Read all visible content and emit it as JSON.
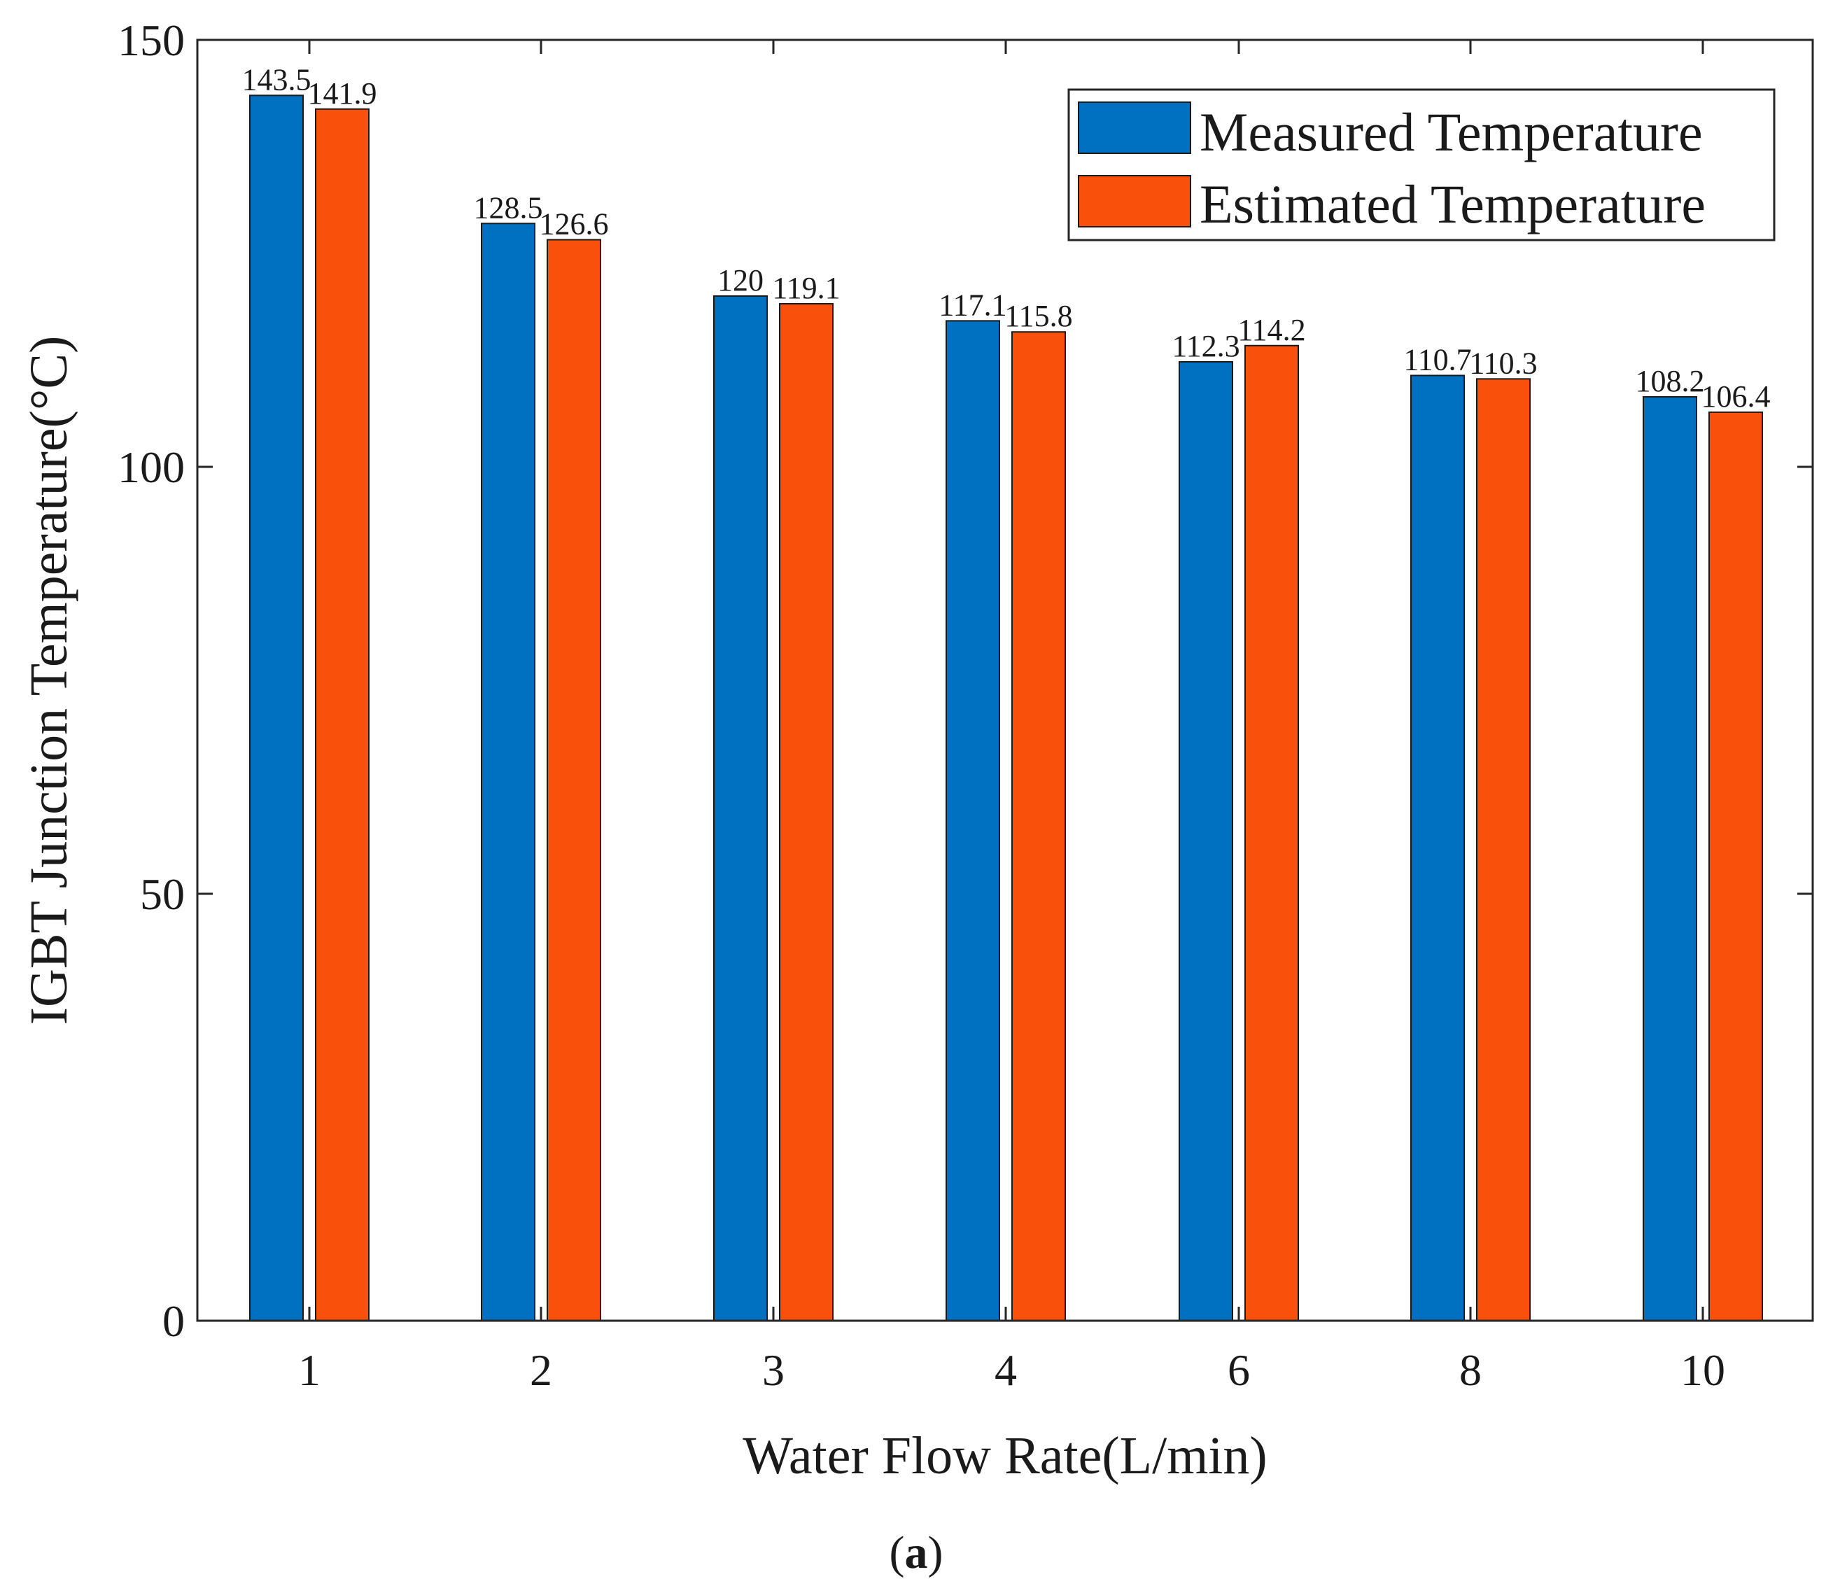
{
  "chart_data": {
    "type": "bar",
    "title": "",
    "xlabel": "Water Flow Rate(L/min)",
    "ylabel": "IGBT Junction Temperature(°C)",
    "categories": [
      "1",
      "2",
      "3",
      "4",
      "6",
      "8",
      "10"
    ],
    "ylim": [
      0,
      150
    ],
    "yticks": [
      "0",
      "50",
      "100",
      "150"
    ],
    "grid": false,
    "legend_position": "top-right",
    "series": [
      {
        "name": "Measured Temperature",
        "color": "#0070C0",
        "values": [
          143.5,
          128.5,
          120,
          117.1,
          112.3,
          110.7,
          108.2
        ],
        "labels": [
          "143.5",
          "128.5",
          "120",
          "117.1",
          "112.3",
          "110.7",
          "108.2"
        ]
      },
      {
        "name": "Estimated Temperature",
        "color": "#F9510B",
        "values": [
          141.9,
          126.6,
          119.1,
          115.8,
          114.2,
          110.3,
          106.4
        ],
        "labels": [
          "141.9",
          "126.6",
          "119.1",
          "115.8",
          "114.2",
          "110.3",
          "106.4"
        ]
      }
    ]
  },
  "caption": {
    "open": "(",
    "letter": "a",
    "close": ")"
  }
}
